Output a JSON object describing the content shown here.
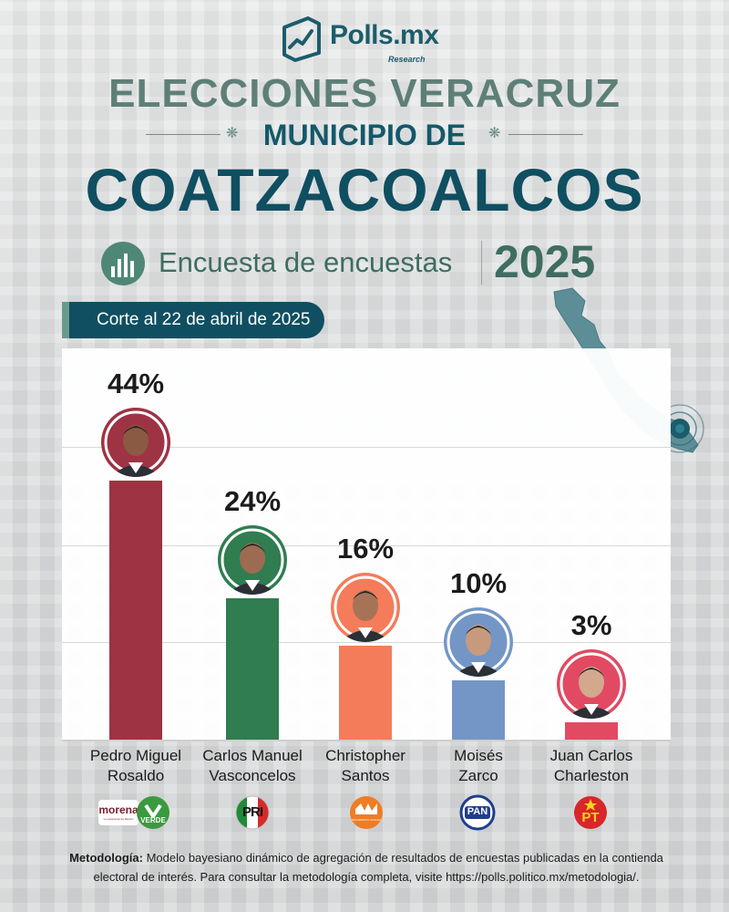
{
  "brand": {
    "name": "Polls.mx",
    "sub": "Research"
  },
  "titles": {
    "line1": "ELECCIONES VERACRUZ",
    "line2": "MUNICIPIO DE",
    "line3": "COATZACOALCOS",
    "subtitle": "Encuesta de encuestas",
    "year": "2025"
  },
  "cutoff": "Corte al 22 de abril de 2025",
  "chart_data": {
    "type": "bar",
    "title": "Encuesta de encuestas 2025 — Municipio de Coatzacoalcos",
    "categories": [
      "Pedro Miguel Rosaldo",
      "Carlos Manuel Vasconcelos",
      "Christopher Santos",
      "Moisés Zarco",
      "Juan Carlos Charleston"
    ],
    "values": [
      44,
      24,
      16,
      10,
      3
    ],
    "labels": [
      "44%",
      "24%",
      "16%",
      "10%",
      "3%"
    ],
    "names_line1": [
      "Pedro Miguel",
      "Carlos Manuel",
      "Christopher",
      "Moisés",
      "Juan Carlos"
    ],
    "names_line2": [
      "Rosaldo",
      "Vasconcelos",
      "Santos",
      "Zarco",
      "Charleston"
    ],
    "colors": [
      "#9e3344",
      "#2f7d50",
      "#f47c5a",
      "#7396c6",
      "#e24a63"
    ],
    "ylim": [
      0,
      50
    ],
    "xlabel": "",
    "ylabel": "",
    "grid": true
  },
  "parties": {
    "morena": "morena",
    "morena_sub": "La esperanza de México",
    "verde": "VERDE",
    "pri": "PRI",
    "mc_sub": "MOVIMIENTO CIUDADANO",
    "pan": "PAN",
    "pt": "PT"
  },
  "methodology": {
    "label": "Metodología:",
    "text": "Modelo bayesiano dinámico de agregación de resultados de encuestas publicadas en la contienda electoral de interés. Para consultar la metodología completa, visite https://polls.politico.mx/metodologia/."
  }
}
